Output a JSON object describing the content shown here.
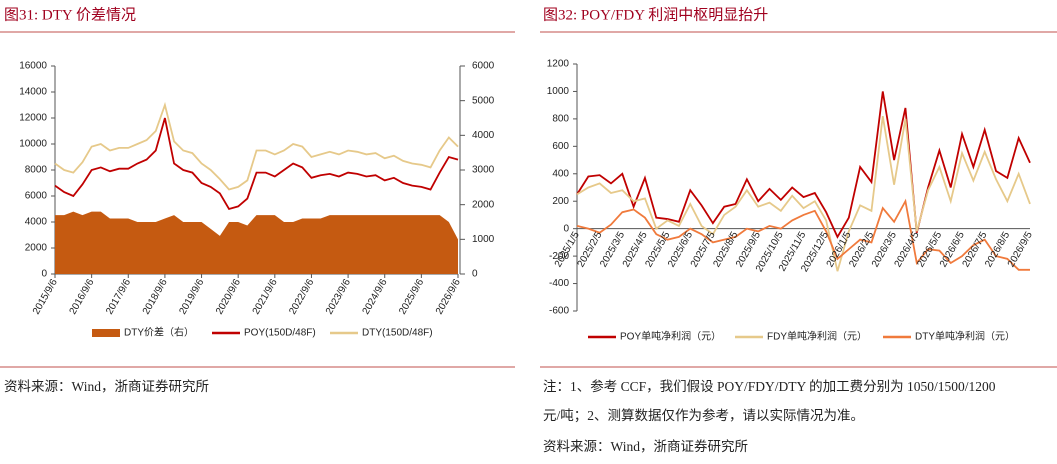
{
  "chart_data": [
    {
      "type": "line",
      "title": "图31:  DTY 价差情况",
      "source": "资料来源：Wind，浙商证券研究所",
      "categories": [
        "2015/9/6",
        null,
        null,
        null,
        "2016/9/6",
        null,
        null,
        null,
        "2017/9/6",
        null,
        null,
        null,
        "2018/9/6",
        null,
        null,
        null,
        "2019/9/6",
        null,
        null,
        null,
        "2020/9/6",
        null,
        null,
        null,
        "2021/9/6",
        null,
        null,
        null,
        "2022/9/6",
        null,
        null,
        null,
        "2023/9/6",
        null,
        null,
        null,
        "2024/9/6",
        null,
        null,
        null,
        "2025/9/6",
        null,
        null,
        null,
        "2026/9/6"
      ],
      "ylim": [
        0,
        16000
      ],
      "yticks": [
        0,
        2000,
        4000,
        6000,
        8000,
        10000,
        12000,
        14000,
        16000
      ],
      "y2lim": [
        0,
        6000
      ],
      "y2ticks": [
        0,
        1000,
        2000,
        3000,
        4000,
        5000,
        6000
      ],
      "series": [
        {
          "name": "DTY价差（右）",
          "type": "area",
          "axis": "y2",
          "color": "#c55a11",
          "values": [
            1700,
            1700,
            1800,
            1700,
            1800,
            1800,
            1600,
            1600,
            1600,
            1500,
            1500,
            1500,
            1600,
            1700,
            1500,
            1500,
            1500,
            1300,
            1100,
            1500,
            1500,
            1400,
            1700,
            1700,
            1700,
            1500,
            1500,
            1600,
            1600,
            1600,
            1700,
            1700,
            1700,
            1700,
            1700,
            1700,
            1700,
            1700,
            1700,
            1700,
            1700,
            1700,
            1700,
            1500,
            1000
          ]
        },
        {
          "name": "POY(150D/48F)",
          "type": "line",
          "color": "#c00000",
          "values": [
            6800,
            6300,
            6000,
            6900,
            8000,
            8200,
            7900,
            8100,
            8100,
            8500,
            8800,
            9500,
            12000,
            8500,
            8000,
            7800,
            7000,
            6700,
            6200,
            5000,
            5200,
            5800,
            7800,
            7800,
            7500,
            8000,
            8500,
            8200,
            7400,
            7600,
            7700,
            7500,
            7800,
            7700,
            7500,
            7600,
            7200,
            7400,
            7000,
            6800,
            6700,
            6500,
            7800,
            9000,
            8800
          ]
        },
        {
          "name": "DTY(150D/48F)",
          "type": "line",
          "color": "#e6c98a",
          "values": [
            8500,
            8000,
            7800,
            8600,
            9800,
            10000,
            9500,
            9700,
            9700,
            10000,
            10300,
            11000,
            13000,
            10200,
            9500,
            9300,
            8500,
            8000,
            7300,
            6500,
            6700,
            7200,
            9500,
            9500,
            9200,
            9500,
            10000,
            9800,
            9000,
            9200,
            9400,
            9200,
            9500,
            9400,
            9200,
            9300,
            8900,
            9100,
            8700,
            8500,
            8400,
            8200,
            9500,
            10500,
            9800
          ]
        }
      ]
    },
    {
      "type": "line",
      "title": "图32:  POY/FDY 利润中枢明显抬升",
      "notes": [
        "注：1、参考 CCF，我们假设 POY/FDY/DTY 的加工费分别为 1050/1500/1200",
        "元/吨；2、测算数据仅作为参考，请以实际情况为准。"
      ],
      "source": "资料来源：Wind，浙商证券研究所",
      "categories": [
        "2025/1/5",
        null,
        "2025/2/5",
        null,
        "2025/3/5",
        null,
        "2025/4/5",
        null,
        "2025/5/5",
        null,
        "2025/6/5",
        null,
        "2025/7/5",
        null,
        "2025/8/5",
        null,
        "2025/9/5",
        null,
        "2025/10/5",
        null,
        "2025/11/5",
        null,
        "2025/12/5",
        null,
        "2026/1/5",
        null,
        "2026/2/5",
        null,
        "2026/3/5",
        null,
        "2026/4/5",
        null,
        "2026/5/5",
        null,
        "2026/6/5",
        null,
        "2026/7/5",
        null,
        "2026/8/5",
        null,
        "2026/9/5"
      ],
      "ylim": [
        -600,
        1200
      ],
      "yticks": [
        -600,
        -400,
        -200,
        0,
        200,
        400,
        600,
        800,
        1000,
        1200
      ],
      "series": [
        {
          "name": "POY单吨净利润（元）",
          "type": "line",
          "color": "#c00000",
          "values": [
            250,
            380,
            390,
            330,
            400,
            160,
            370,
            80,
            70,
            50,
            280,
            170,
            40,
            160,
            180,
            360,
            200,
            290,
            210,
            300,
            230,
            260,
            120,
            -60,
            80,
            450,
            340,
            1000,
            500,
            880,
            -30,
            300,
            570,
            300,
            690,
            450,
            720,
            420,
            370,
            660,
            480
          ]
        },
        {
          "name": "FDY单吨净利润（元）",
          "type": "line",
          "color": "#e6c98a",
          "values": [
            250,
            300,
            330,
            260,
            280,
            200,
            220,
            0,
            60,
            20,
            180,
            20,
            -40,
            100,
            160,
            280,
            160,
            190,
            130,
            240,
            150,
            200,
            60,
            -310,
            -20,
            170,
            130,
            820,
            320,
            800,
            -20,
            280,
            450,
            200,
            550,
            350,
            560,
            360,
            200,
            400,
            180
          ]
        },
        {
          "name": "DTY单吨净利润（元）",
          "type": "line",
          "color": "#f07a3c",
          "values": [
            20,
            0,
            -30,
            30,
            120,
            140,
            80,
            -40,
            -80,
            -60,
            0,
            -40,
            -100,
            -80,
            -60,
            0,
            -20,
            20,
            0,
            60,
            100,
            130,
            -20,
            -220,
            -150,
            -80,
            -100,
            150,
            50,
            200,
            -250,
            -150,
            -160,
            -250,
            -200,
            -120,
            -80,
            -200,
            -220,
            -300,
            -300
          ]
        }
      ]
    }
  ]
}
